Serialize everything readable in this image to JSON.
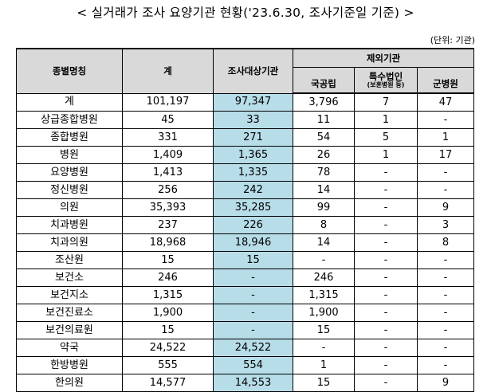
{
  "title": "< 실거래가 조사 요양기관 현황('23.6.30, 조사기준일 기준) >",
  "unit": "(단위: 기관)",
  "header": {
    "type": "종별명칭",
    "total": "계",
    "surveyed": "조사대상기관",
    "excluded": "제외기관",
    "public": "국공립",
    "special": "특수법인",
    "special_note": "(보훈병원 등)",
    "military": "군병원"
  },
  "rows": [
    {
      "type": "계",
      "total": "101,197",
      "surveyed": "97,347",
      "public": "3,796",
      "special": "7",
      "military": "47"
    },
    {
      "type": "상급종합병원",
      "total": "45",
      "surveyed": "33",
      "public": "11",
      "special": "1",
      "military": "-"
    },
    {
      "type": "종합병원",
      "total": "331",
      "surveyed": "271",
      "public": "54",
      "special": "5",
      "military": "1"
    },
    {
      "type": "병원",
      "total": "1,409",
      "surveyed": "1,365",
      "public": "26",
      "special": "1",
      "military": "17"
    },
    {
      "type": "요양병원",
      "total": "1,413",
      "surveyed": "1,335",
      "public": "78",
      "special": "-",
      "military": "-"
    },
    {
      "type": "정신병원",
      "total": "256",
      "surveyed": "242",
      "public": "14",
      "special": "-",
      "military": "-"
    },
    {
      "type": "의원",
      "total": "35,393",
      "surveyed": "35,285",
      "public": "99",
      "special": "-",
      "military": "9"
    },
    {
      "type": "치과병원",
      "total": "237",
      "surveyed": "226",
      "public": "8",
      "special": "-",
      "military": "3"
    },
    {
      "type": "치과의원",
      "total": "18,968",
      "surveyed": "18,946",
      "public": "14",
      "special": "-",
      "military": "8"
    },
    {
      "type": "조산원",
      "total": "15",
      "surveyed": "15",
      "public": "-",
      "special": "-",
      "military": "-"
    },
    {
      "type": "보건소",
      "total": "246",
      "surveyed": "-",
      "public": "246",
      "special": "-",
      "military": "-"
    },
    {
      "type": "보건지소",
      "total": "1,315",
      "surveyed": "-",
      "public": "1,315",
      "special": "-",
      "military": "-"
    },
    {
      "type": "보건진료소",
      "total": "1,900",
      "surveyed": "-",
      "public": "1,900",
      "special": "-",
      "military": "-"
    },
    {
      "type": "보건의료원",
      "total": "15",
      "surveyed": "-",
      "public": "15",
      "special": "-",
      "military": "-"
    },
    {
      "type": "약국",
      "total": "24,522",
      "surveyed": "24,522",
      "public": "-",
      "special": "-",
      "military": "-"
    },
    {
      "type": "한방병원",
      "total": "555",
      "surveyed": "554",
      "public": "1",
      "special": "-",
      "military": "-"
    },
    {
      "type": "한의원",
      "total": "14,577",
      "surveyed": "14,553",
      "public": "15",
      "special": "-",
      "military": "9"
    }
  ]
}
